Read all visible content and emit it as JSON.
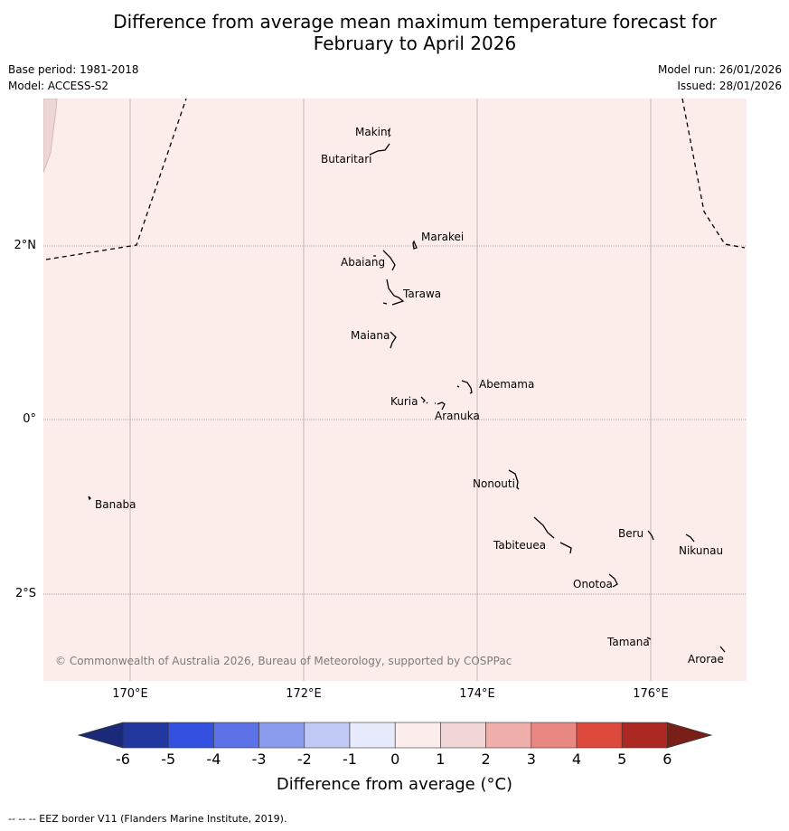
{
  "title_line1": "Difference from average mean maximum temperature forecast for",
  "title_line2": "February to April 2026",
  "meta": {
    "base_period": "Base period: 1981-2018",
    "model": "Model: ACCESS-S2",
    "model_run": "Model run: 26/01/2026",
    "issued": "Issued: 28/01/2026"
  },
  "lon_labels": [
    "170°E",
    "172°E",
    "174°E",
    "176°E"
  ],
  "lat_labels": [
    "2°N",
    "0°",
    "2°S"
  ],
  "islands": [
    "Makin",
    "Butaritari",
    "Marakei",
    "Abaiang",
    "Tarawa",
    "Maiana",
    "Abemama",
    "Kuria",
    "Aranuka",
    "Banaba",
    "Nonouti",
    "Beru",
    "Nikunau",
    "Tabiteuea",
    "Onotoa",
    "Tamana",
    "Arorae"
  ],
  "copyright": "© Commonwealth of Australia 2026, Bureau of Meteorology, supported by COSPPac",
  "colorbar": {
    "ticks": [
      "-6",
      "-5",
      "-4",
      "-3",
      "-2",
      "-1",
      "0",
      "1",
      "2",
      "3",
      "4",
      "5",
      "6"
    ],
    "colors": [
      "#22389e",
      "#3350e0",
      "#5c72e6",
      "#8b9bed",
      "#c0c8f5",
      "#e8ebfb",
      "#fdecec",
      "#f0d6d6",
      "#efaeaa",
      "#e98782",
      "#dd4a3d",
      "#ac2823"
    ],
    "under_color": "#1a2a78",
    "over_color": "#7a1e18",
    "label": "Difference from average (°C)"
  },
  "map_fill": "#fcecea",
  "footnote": "--  --  -- EEZ border V11 (Flanders Marine Institute, 2019)."
}
